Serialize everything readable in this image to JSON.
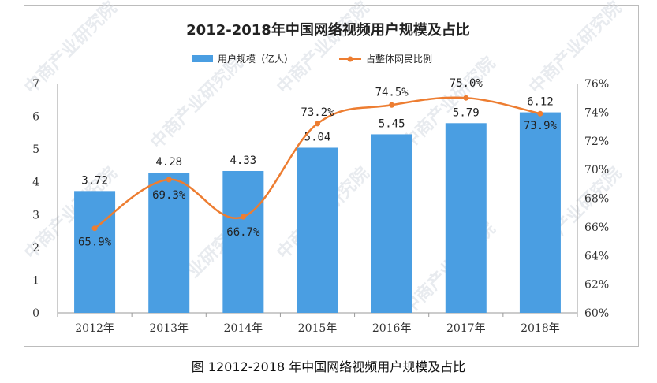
{
  "caption": "图 12012-2018 年中国网络视频用户规模及占比",
  "watermark": "中商产业研究院",
  "colors": {
    "bar": "#4a9ee2",
    "line": "#ed7d31",
    "axis_text": "#333333"
  },
  "chart_data": {
    "type": "bar",
    "title": "2012-2018年中国网络视频用户规模及占比",
    "categories": [
      "2012年",
      "2013年",
      "2014年",
      "2015年",
      "2016年",
      "2017年",
      "2018年"
    ],
    "series": [
      {
        "name": "用户规模（亿人）",
        "type": "bar",
        "axis": "left",
        "values": [
          3.72,
          4.28,
          4.33,
          5.04,
          5.45,
          5.79,
          6.12
        ],
        "labels": [
          "3.72",
          "4.28",
          "4.33",
          "5.04",
          "5.45",
          "5.79",
          "6.12"
        ]
      },
      {
        "name": "占整体网民比例",
        "type": "line",
        "axis": "right",
        "values": [
          65.9,
          69.3,
          66.7,
          73.2,
          74.5,
          75.0,
          73.9
        ],
        "labels": [
          "65.9%",
          "69.3%",
          "66.7%",
          "73.2%",
          "74.5%",
          "75.0%",
          "73.9%"
        ]
      }
    ],
    "y_left": {
      "ylim": [
        0,
        7
      ],
      "ticks": [
        "0",
        "1",
        "2",
        "3",
        "4",
        "5",
        "6",
        "7"
      ]
    },
    "y_right": {
      "ylim": [
        60,
        76
      ],
      "ticks": [
        "60%",
        "62%",
        "64%",
        "66%",
        "68%",
        "70%",
        "72%",
        "74%",
        "76%"
      ]
    },
    "legend_position": "top-center",
    "grid": false
  }
}
